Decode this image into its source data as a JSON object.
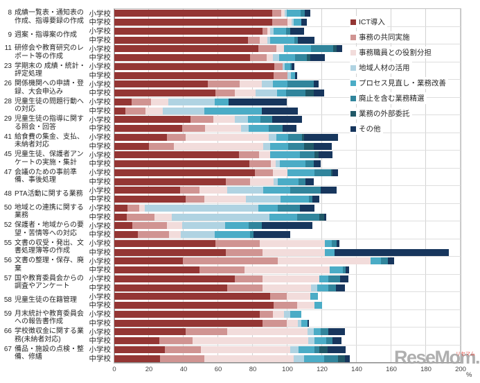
{
  "watermark": {
    "text": "ReseMom.",
    "ruby": "リセマム"
  },
  "axis": {
    "unit": "%",
    "min": 0,
    "max": 200,
    "tick_step": 20,
    "ticks": [
      0,
      20,
      40,
      60,
      80,
      100,
      120,
      140,
      160,
      180,
      200
    ]
  },
  "schools": [
    "小学校",
    "中学校"
  ],
  "legend": {
    "position": "top-right-inside"
  },
  "colors": {
    "ICT導入": "#943634",
    "事務の共同実施": "#D09492",
    "事務職員との役割分担": "#F2DCDB",
    "地域人材の活用": "#B0D3E2",
    "プロセス見直し・業務改善": "#4BACC6",
    "廃止を含む業務精選": "#31859C",
    "業務の外部委託": "#215968",
    "その他": "#17365D"
  },
  "chart_data": {
    "type": "bar",
    "subtype": "horizontal-stacked",
    "xlabel": "%",
    "xlim": [
      0,
      200
    ],
    "grid": true,
    "series_names": [
      "ICT導入",
      "事務の共同実施",
      "事務職員との役割分担",
      "地域人材の活用",
      "プロセス見直し・業務改善",
      "廃止を含む業務精選",
      "業務の外部委託",
      "その他"
    ],
    "series_colors": [
      "#943634",
      "#D09492",
      "#F2DCDB",
      "#B0D3E2",
      "#4BACC6",
      "#31859C",
      "#215968",
      "#17365D"
    ],
    "row_labels": [
      "小学校",
      "中学校"
    ],
    "categories": [
      {
        "no": "8",
        "text": "成績一覧表・通知表の作成、指導要録の作成",
        "rows": [
          [
            91,
            5.5,
            2,
            1,
            8,
            2.5,
            0,
            3
          ],
          [
            91,
            9,
            2.5,
            1,
            4.5,
            0,
            0,
            3
          ]
        ]
      },
      {
        "no": "9",
        "text": "週案・指導案の作成",
        "rows": [
          [
            85.5,
            3,
            1.5,
            2,
            7,
            2.5,
            0,
            8
          ],
          [
            77,
            7,
            4.5,
            1.5,
            14,
            2,
            0,
            9.5
          ]
        ]
      },
      {
        "no": "11",
        "text": "研修会や教育研究のレポート等の作成",
        "rows": [
          [
            83,
            10.5,
            4.5,
            0,
            15.5,
            13,
            2,
            3
          ],
          [
            78.5,
            9.5,
            3.5,
            3.5,
            9.5,
            6.5,
            2,
            8.5
          ]
        ]
      },
      {
        "no": "23",
        "text": "学期末の 成績・統計・評定処理",
        "rows": [
          [
            92.5,
            4.5,
            0,
            1.5,
            3,
            1,
            0,
            1.5
          ],
          [
            92,
            8,
            0,
            2,
            2.5,
            0,
            0,
            1
          ]
        ]
      },
      {
        "no": "26",
        "text": "関係機関への申請・登録、大会申込み",
        "rows": [
          [
            54,
            18.5,
            12.5,
            6.5,
            8.5,
            15,
            0,
            3
          ],
          [
            58.5,
            11,
            12,
            12.5,
            5,
            11.5,
            4.5,
            6
          ]
        ]
      },
      {
        "no": "28",
        "text": "児童生徒の問題行動への対応",
        "rows": [
          [
            10,
            11,
            10,
            27,
            8,
            0,
            0,
            33.5
          ],
          [
            6.5,
            11.5,
            10,
            24,
            33,
            0,
            0,
            21
          ]
        ]
      },
      {
        "no": "29",
        "text": "児童生徒の指導に関する照会・回答",
        "rows": [
          [
            44,
            13,
            12.5,
            7.5,
            7.5,
            6.5,
            0,
            17.5
          ],
          [
            39,
            13.5,
            20.5,
            4.5,
            11.5,
            8,
            0,
            8
          ]
        ]
      },
      {
        "no": "41",
        "text": "給食費の集金、支払、未納者対応",
        "rows": [
          [
            30.5,
            10.5,
            48,
            4.5,
            7,
            8,
            1,
            19.5
          ],
          [
            20,
            14.5,
            51.5,
            4,
            10.5,
            9,
            5.5,
            10.5
          ]
        ]
      },
      {
        "no": "45",
        "text": "児童生徒、保護者アンケートの実施・集計",
        "rows": [
          [
            72,
            11.5,
            6.5,
            0,
            17,
            8.5,
            2.5,
            8
          ],
          [
            78,
            12.5,
            2.5,
            2.5,
            15,
            4.5,
            0,
            4
          ]
        ]
      },
      {
        "no": "47",
        "text": "会議のための事前準備、事後処理",
        "rows": [
          [
            81,
            10.5,
            8.5,
            0,
            15.5,
            9.5,
            1,
            3
          ],
          [
            64.5,
            14,
            13.5,
            2.5,
            12,
            4,
            0,
            4.5
          ]
        ]
      },
      {
        "no": "48",
        "text": "PTA活動に関する業務",
        "rows": [
          [
            38,
            11,
            16,
            21,
            15.5,
            17.5,
            0,
            9.5
          ],
          [
            41,
            11,
            24,
            20,
            16.5,
            2,
            0,
            4
          ]
        ]
      },
      {
        "no": "50",
        "text": "地域との連携に関する業務",
        "rows": [
          [
            7.5,
            7,
            3,
            65.5,
            11.5,
            12.5,
            0,
            8.5
          ],
          [
            7,
            16,
            10,
            56.5,
            16,
            13,
            2.5,
            1.5
          ]
        ]
      },
      {
        "no": "52",
        "text": "保護者・地域からの要望・苦情等への対応",
        "rows": [
          [
            10.5,
            20,
            8.5,
            25,
            13.5,
            7.5,
            0,
            29.5
          ],
          [
            13.5,
            18,
            7,
            19.5,
            20.5,
            2,
            0,
            21
          ]
        ]
      },
      {
        "no": "55",
        "text": "文書の収受・発出、文書処理簿等の作成",
        "rows": [
          [
            58.5,
            25.5,
            37.5,
            0,
            4,
            3,
            0,
            1.5
          ],
          [
            64.5,
            21,
            36,
            0,
            5.5,
            0,
            0,
            66
          ]
        ]
      },
      {
        "no": "56",
        "text": "文書の整理・保存、廃棄",
        "rows": [
          [
            39.5,
            55,
            53.5,
            0,
            6,
            4,
            0,
            3.5
          ],
          [
            49,
            26,
            49.5,
            0,
            7.5,
            1.5,
            0,
            2
          ]
        ]
      },
      {
        "no": "57",
        "text": "国や教育委員会からの調査やアンケート",
        "rows": [
          [
            69.5,
            16,
            33,
            0,
            5,
            7,
            0,
            4.5
          ],
          [
            65,
            20.5,
            28,
            3.5,
            6.5,
            4.5,
            0,
            5
          ]
        ]
      },
      {
        "no": "58",
        "text": "児童生徒の在籍管理",
        "rows": [
          [
            90,
            9.5,
            13.5,
            0,
            4.5,
            0,
            0,
            0
          ],
          [
            92,
            13.5,
            10,
            0,
            4.5,
            0,
            0,
            0
          ]
        ]
      },
      {
        "no": "59",
        "text": "月末統計や教育委員会への報告書作成",
        "rows": [
          [
            84,
            7.5,
            6.5,
            3.5,
            6.5,
            0,
            0,
            0
          ],
          [
            85.5,
            14,
            6.5,
            2,
            3.5,
            0,
            0,
            1
          ]
        ]
      },
      {
        "no": "66",
        "text": "学校徴収金に関する業務(未納者対応)",
        "rows": [
          [
            41,
            24,
            46.5,
            3.5,
            4,
            4.5,
            0,
            9.5
          ],
          [
            26,
            19,
            67,
            3.5,
            7,
            3.5,
            0,
            5
          ]
        ]
      },
      {
        "no": "67",
        "text": "備品・施設の点検・整備、修繕",
        "rows": [
          [
            29,
            21,
            51.5,
            5,
            9,
            3,
            4.5,
            10.5
          ],
          [
            26.5,
            25.5,
            51.5,
            6,
            11.5,
            8,
            4,
            3
          ]
        ]
      }
    ]
  }
}
